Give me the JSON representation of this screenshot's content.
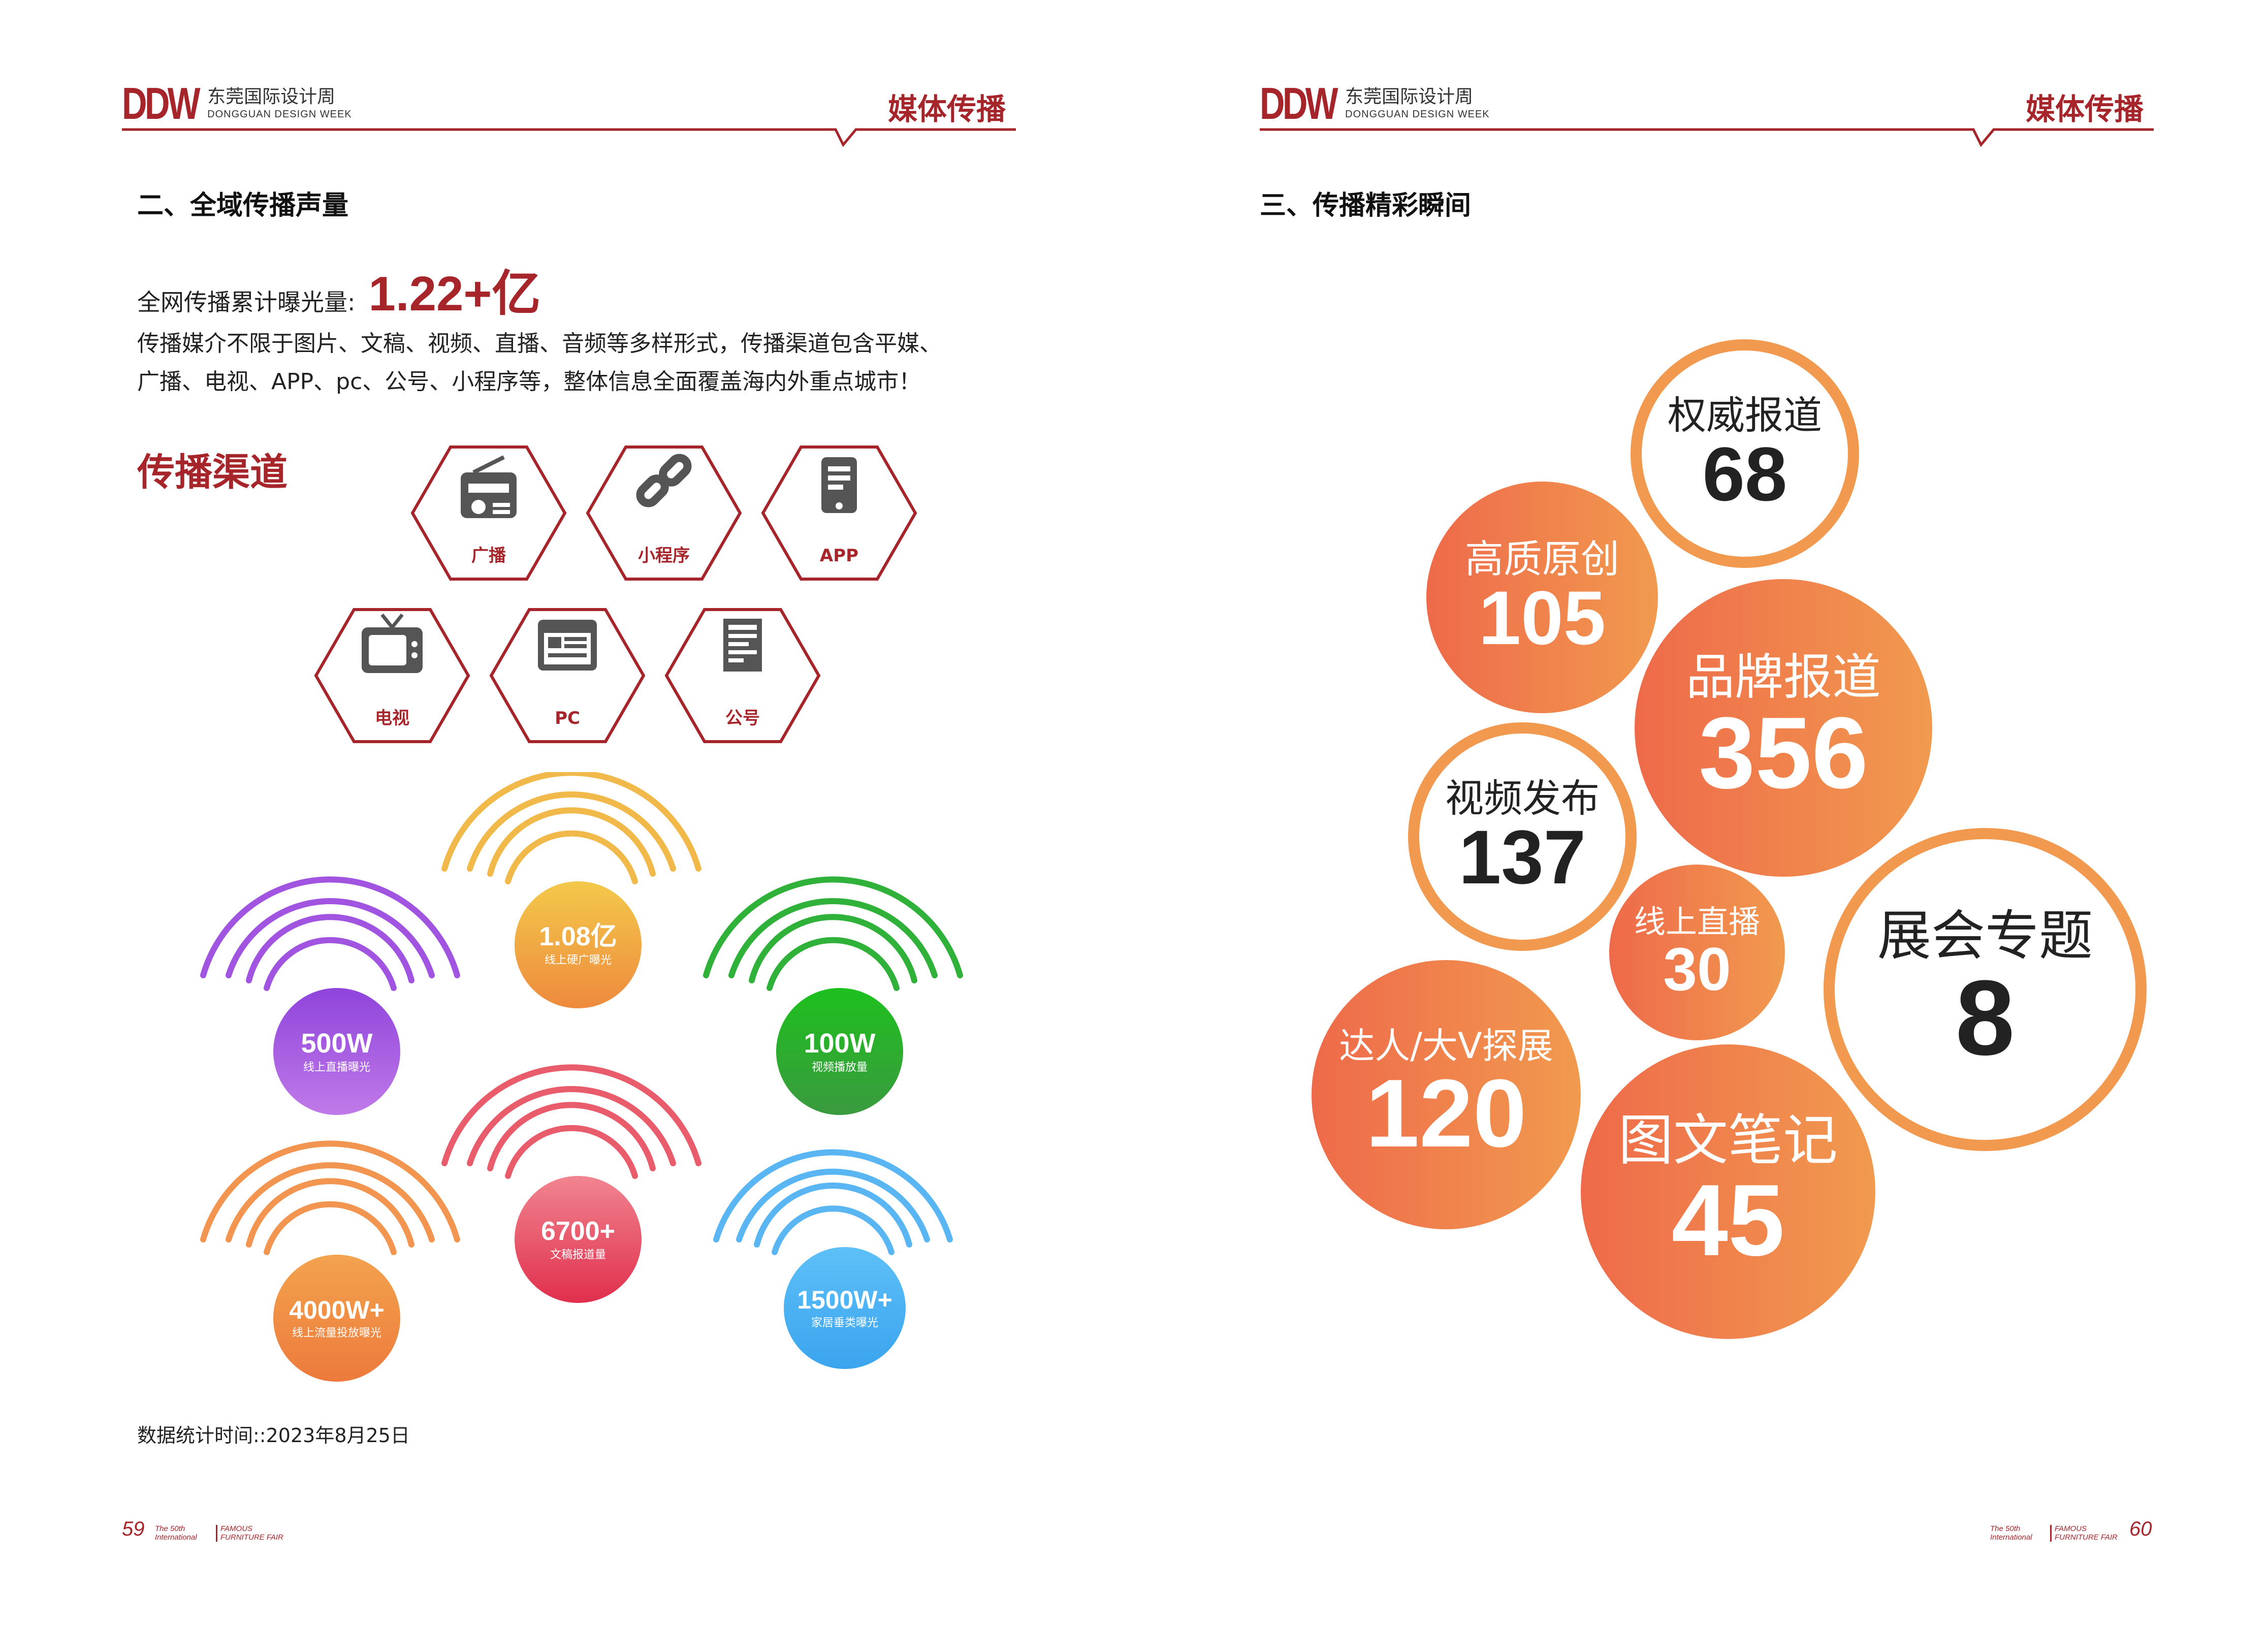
{
  "left": {
    "logo": {
      "mark": "DDW",
      "cn": "东莞国际设计周",
      "en": "DONGGUAN DESIGN WEEK"
    },
    "section_tag": "媒体传播",
    "heading": "二、全域传播声量",
    "exposure_label": "全网传播累计曝光量:",
    "exposure_value": "1.22+亿",
    "para1": "传播媒介不限于图片、文稿、视频、直播、音频等多样形式，传播渠道包含平媒、",
    "para2": "广播、电视、APP、pc、公号、小程序等，整体信息全面覆盖海内外重点城市！",
    "channels_title": "传播渠道",
    "channels": [
      {
        "label": "广播",
        "icon": "radio-icon"
      },
      {
        "label": "小程序",
        "icon": "link-icon"
      },
      {
        "label": "APP",
        "icon": "mobile-app-icon"
      },
      {
        "label": "电视",
        "icon": "tv-icon"
      },
      {
        "label": "PC",
        "icon": "browser-window-icon"
      },
      {
        "label": "公号",
        "icon": "article-icon"
      }
    ],
    "stats": [
      {
        "value": "1.08亿",
        "caption": "线上硬广曝光",
        "color": "#f1a43c"
      },
      {
        "value": "500W",
        "caption": "线上直播曝光",
        "color": "#9b4fd9"
      },
      {
        "value": "100W",
        "caption": "视频播放量",
        "color": "#27a22d"
      },
      {
        "value": "6700+",
        "caption": "文稿报道量",
        "color": "#e3485c"
      },
      {
        "value": "4000W+",
        "caption": "线上流量投放曝光",
        "color": "#f08a45"
      },
      {
        "value": "1500W+",
        "caption": "家居垂类曝光",
        "color": "#4aaaf0"
      }
    ],
    "data_date": "数据统计时间::2023年8月25日",
    "page_number": "59",
    "fair": {
      "line1": "The 50th",
      "line2": "International",
      "line3": "FAMOUS",
      "line4": "FURNITURE FAIR"
    }
  },
  "right": {
    "logo": {
      "mark": "DDW",
      "cn": "东莞国际设计周",
      "en": "DONGGUAN DESIGN WEEK"
    },
    "section_tag": "媒体传播",
    "heading": "三、传播精彩瞬间",
    "bubbles": [
      {
        "label": "权威报道",
        "value": "68"
      },
      {
        "label": "高质原创",
        "value": "105"
      },
      {
        "label": "品牌报道",
        "value": "356"
      },
      {
        "label": "视频发布",
        "value": "137"
      },
      {
        "label": "线上直播",
        "value": "30"
      },
      {
        "label": "展会专题",
        "value": "8"
      },
      {
        "label": "达人/大V探展",
        "value": "120"
      },
      {
        "label": "图文笔记",
        "value": "45"
      }
    ],
    "page_number": "60",
    "fair": {
      "line1": "The 50th",
      "line2": "International",
      "line3": "FAMOUS",
      "line4": "FURNITURE FAIR"
    }
  }
}
